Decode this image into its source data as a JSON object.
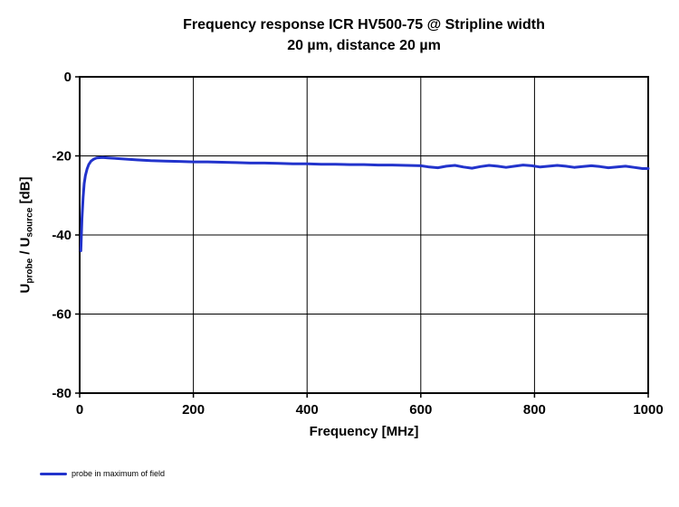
{
  "chart_data": {
    "type": "line",
    "title_line1": "Frequency response ICR HV500-75 @ Stripline width",
    "title_line2": "20 µm, distance 20 µm",
    "xlabel": "Frequency [MHz]",
    "ylabel_parts": [
      {
        "t": "U"
      },
      {
        "t": "probe",
        "sub": true
      },
      {
        "t": " / U"
      },
      {
        "t": "source",
        "sub": true
      },
      {
        "t": " [dB]"
      }
    ],
    "xlim": [
      0,
      1000
    ],
    "ylim": [
      -80,
      0
    ],
    "x_ticks": [
      0,
      200,
      400,
      600,
      800,
      1000
    ],
    "y_ticks": [
      0,
      -20,
      -40,
      -60,
      -80
    ],
    "grid": true,
    "axis_color": "#000000",
    "legend": {
      "position": "bottom-left",
      "entries": [
        {
          "label": "probe in maximum of field",
          "color": "#2233cc"
        }
      ]
    },
    "series": [
      {
        "name": "probe in maximum of field",
        "color": "#2233cc",
        "width": 3,
        "points": [
          [
            2,
            -44
          ],
          [
            4,
            -36
          ],
          [
            6,
            -30.5
          ],
          [
            8,
            -27
          ],
          [
            10,
            -25
          ],
          [
            13,
            -23.3
          ],
          [
            16,
            -22.2
          ],
          [
            20,
            -21.3
          ],
          [
            25,
            -20.8
          ],
          [
            30,
            -20.5
          ],
          [
            40,
            -20.4
          ],
          [
            50,
            -20.5
          ],
          [
            60,
            -20.6
          ],
          [
            80,
            -20.8
          ],
          [
            100,
            -21.0
          ],
          [
            125,
            -21.2
          ],
          [
            150,
            -21.3
          ],
          [
            175,
            -21.4
          ],
          [
            200,
            -21.5
          ],
          [
            225,
            -21.5
          ],
          [
            250,
            -21.6
          ],
          [
            275,
            -21.7
          ],
          [
            300,
            -21.8
          ],
          [
            325,
            -21.8
          ],
          [
            350,
            -21.9
          ],
          [
            375,
            -22.0
          ],
          [
            400,
            -22.0
          ],
          [
            425,
            -22.1
          ],
          [
            450,
            -22.1
          ],
          [
            475,
            -22.2
          ],
          [
            500,
            -22.2
          ],
          [
            525,
            -22.3
          ],
          [
            550,
            -22.3
          ],
          [
            575,
            -22.4
          ],
          [
            600,
            -22.5
          ],
          [
            615,
            -22.8
          ],
          [
            630,
            -23.0
          ],
          [
            645,
            -22.6
          ],
          [
            660,
            -22.4
          ],
          [
            675,
            -22.8
          ],
          [
            690,
            -23.1
          ],
          [
            705,
            -22.7
          ],
          [
            720,
            -22.4
          ],
          [
            735,
            -22.6
          ],
          [
            750,
            -22.9
          ],
          [
            765,
            -22.6
          ],
          [
            780,
            -22.3
          ],
          [
            795,
            -22.5
          ],
          [
            810,
            -22.8
          ],
          [
            825,
            -22.6
          ],
          [
            840,
            -22.4
          ],
          [
            855,
            -22.6
          ],
          [
            870,
            -22.9
          ],
          [
            885,
            -22.7
          ],
          [
            900,
            -22.5
          ],
          [
            915,
            -22.7
          ],
          [
            930,
            -23.0
          ],
          [
            945,
            -22.8
          ],
          [
            960,
            -22.6
          ],
          [
            975,
            -22.9
          ],
          [
            990,
            -23.2
          ],
          [
            1000,
            -23.2
          ]
        ]
      }
    ]
  }
}
